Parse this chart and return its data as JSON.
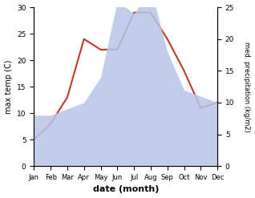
{
  "months": [
    "Jan",
    "Feb",
    "Mar",
    "Apr",
    "May",
    "Jun",
    "Jul",
    "Aug",
    "Sep",
    "Oct",
    "Nov",
    "Dec"
  ],
  "temperature": [
    5,
    8,
    13,
    24,
    22,
    22,
    29,
    29,
    24,
    18,
    11,
    12
  ],
  "precipitation": [
    8,
    8,
    9,
    10,
    14,
    26,
    24,
    28,
    18,
    12,
    11,
    10
  ],
  "temp_color": "#c0392b",
  "precip_fill_color": "#b8c4e8",
  "xlabel": "date (month)",
  "ylabel_left": "max temp (C)",
  "ylabel_right": "med. precipitation (kg/m2)",
  "ylim_left": [
    0,
    30
  ],
  "ylim_right": [
    0,
    25
  ],
  "bg_color": "#ffffff"
}
